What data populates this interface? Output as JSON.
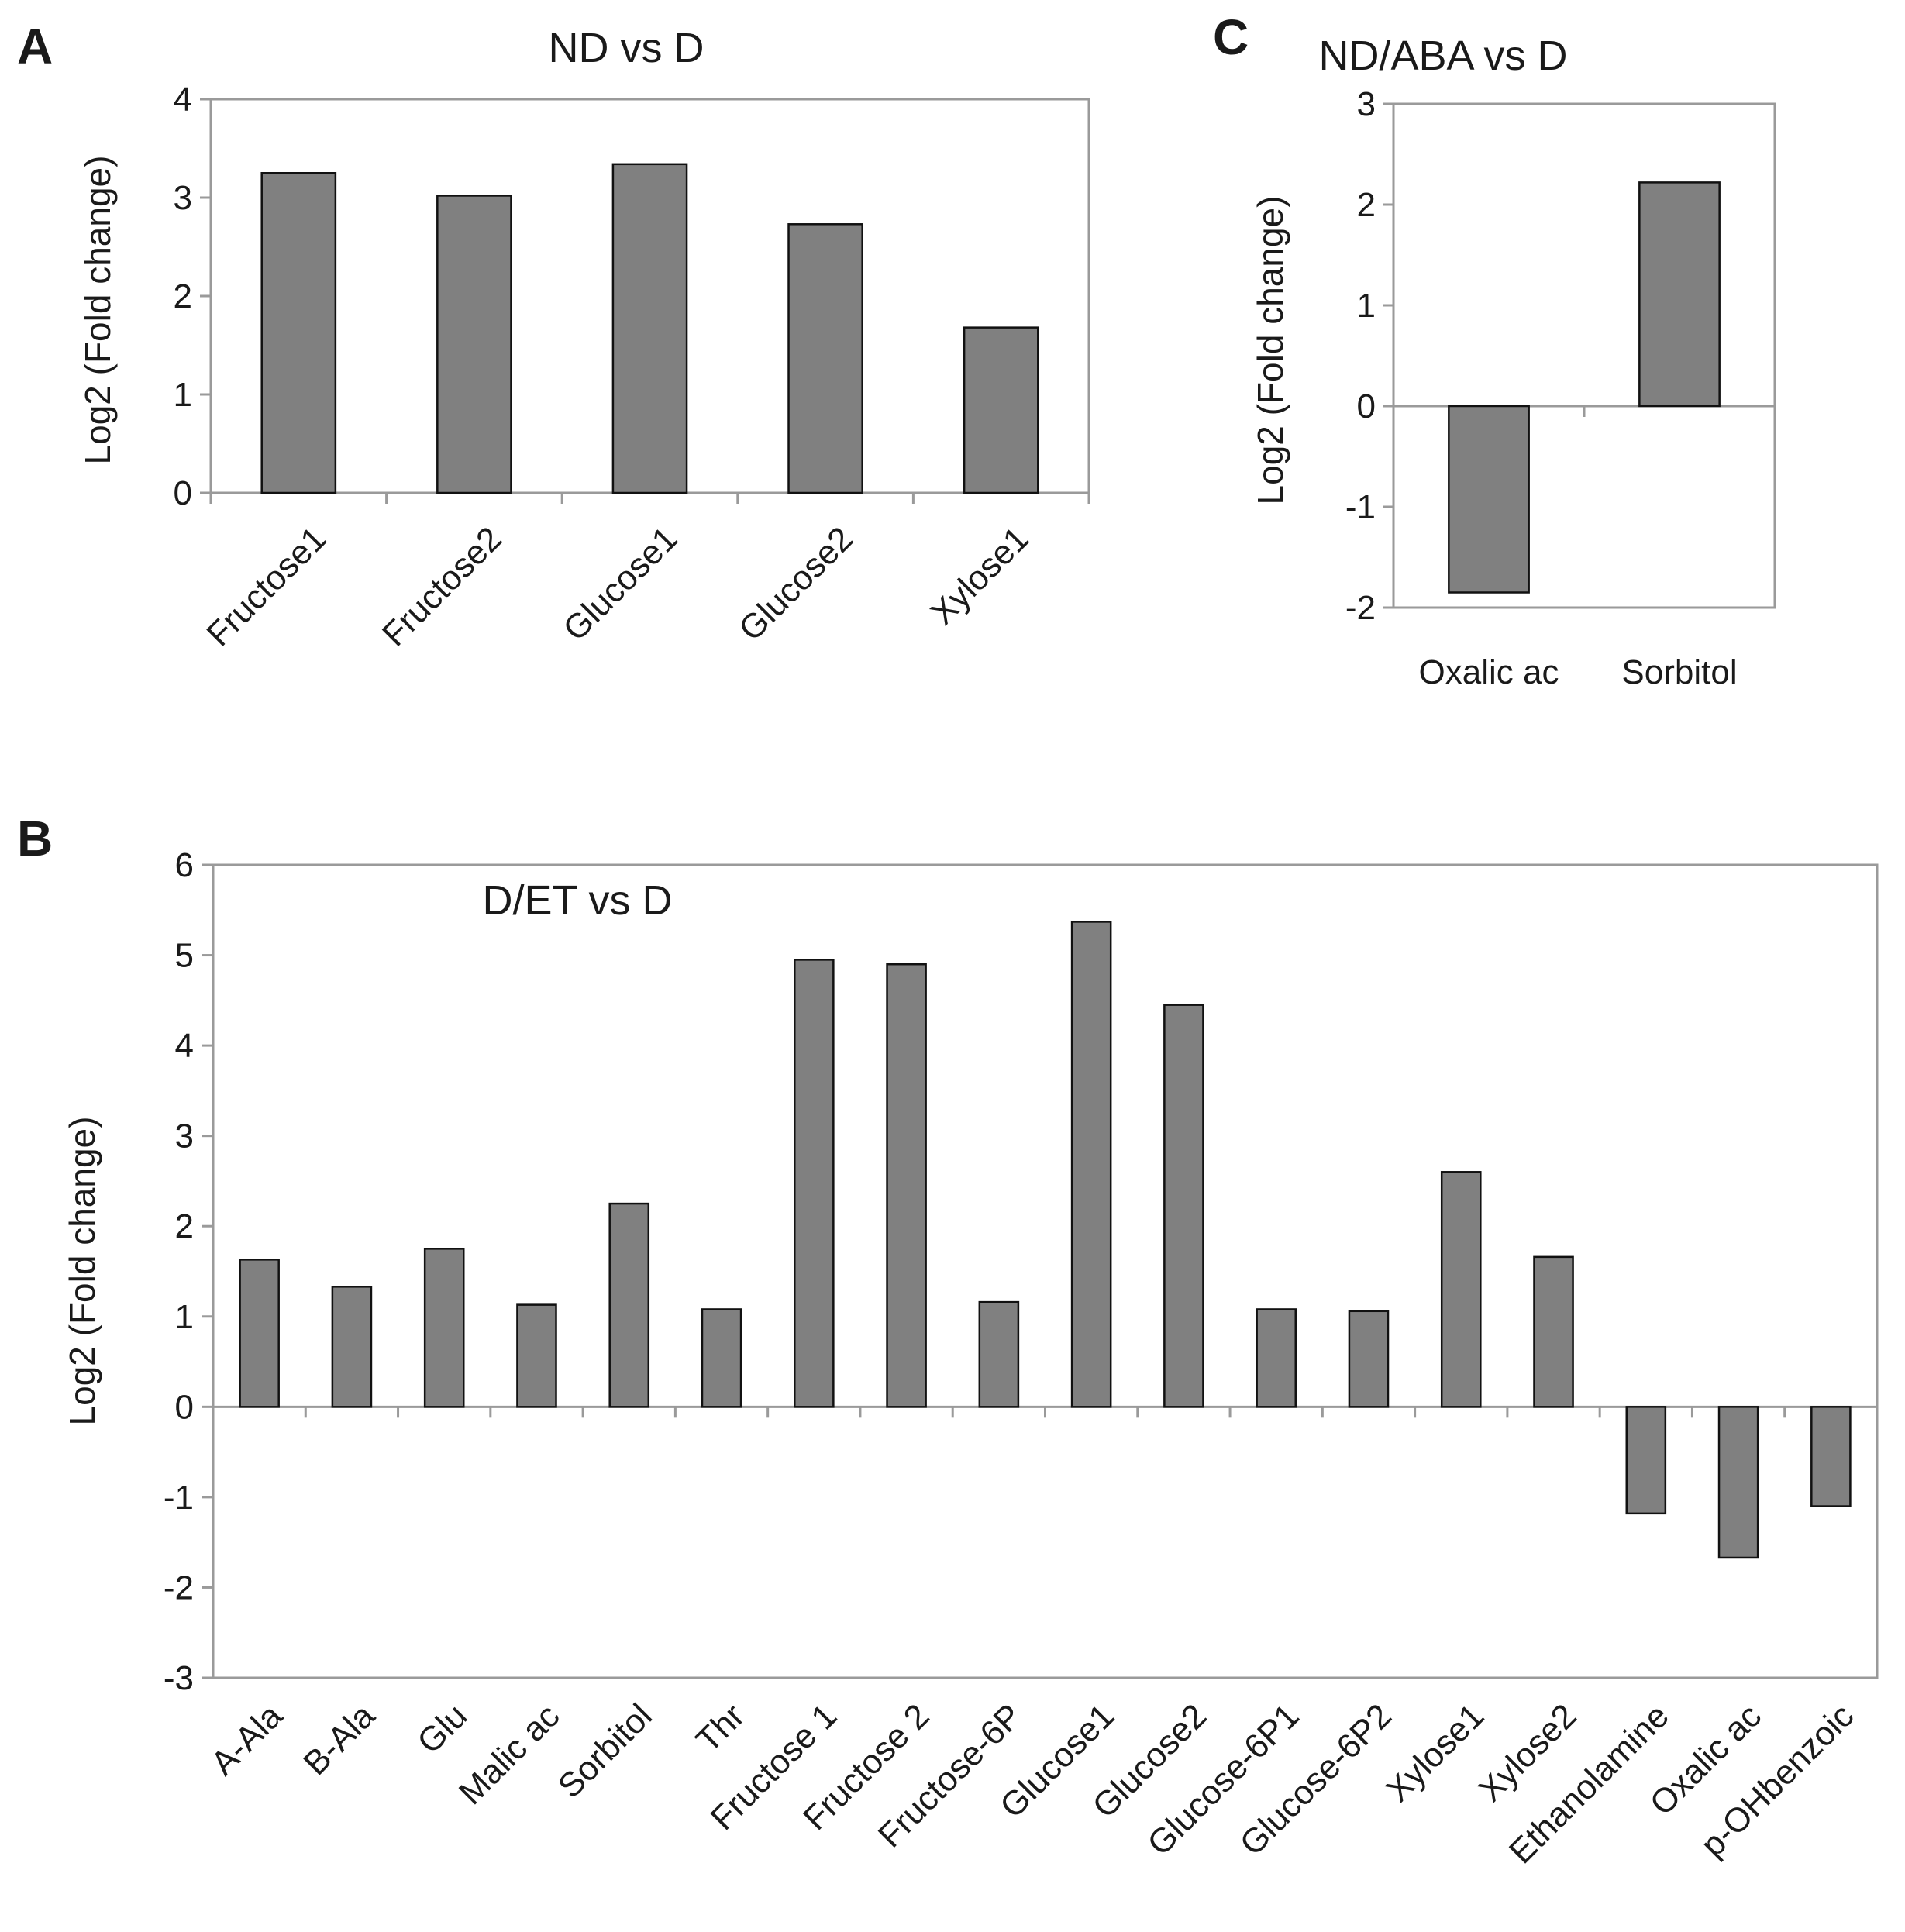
{
  "chart_data": [
    {
      "panel": "A",
      "type": "bar",
      "title": "ND vs D",
      "ylabel": "Log2 (Fold change)",
      "xlabel": "",
      "ylim": [
        0,
        4
      ],
      "yticks": [
        0,
        1,
        2,
        3,
        4
      ],
      "grid": false,
      "categories": [
        "Fructose1",
        "Fructose2",
        "Glucose1",
        "Glucose2",
        "Xylose1"
      ],
      "values": [
        3.25,
        3.02,
        3.34,
        2.73,
        1.68
      ],
      "label_rotation": -45
    },
    {
      "panel": "C",
      "type": "bar",
      "title": "ND/ABA vs D",
      "ylabel": "Log2 (Fold change)",
      "xlabel": "",
      "ylim": [
        -2,
        3
      ],
      "yticks": [
        -2,
        -1,
        0,
        1,
        2,
        3
      ],
      "grid": false,
      "categories": [
        "Oxalic ac",
        "Sorbitol"
      ],
      "values": [
        -1.85,
        2.22
      ],
      "label_rotation": 0
    },
    {
      "panel": "B",
      "type": "bar",
      "title": "D/ET vs D",
      "ylabel": "Log2 (Fold change)",
      "xlabel": "",
      "ylim": [
        -3,
        6
      ],
      "yticks": [
        -3,
        -2,
        -1,
        0,
        1,
        2,
        3,
        4,
        5,
        6
      ],
      "grid": false,
      "categories": [
        "A-Ala",
        "B-Ala",
        "Glu",
        "Malic ac",
        "Sorbitol",
        "Thr",
        "Fructose 1",
        "Fructose 2",
        "Fructose-6P",
        "Glucose1",
        "Glucose2",
        "Glucose-6P1",
        "Glucose-6P2",
        "Xylose1",
        "Xylose2",
        "Ethanolamine",
        "Oxalic ac",
        "p-OHbenzoic"
      ],
      "values": [
        1.63,
        1.33,
        1.75,
        1.13,
        2.25,
        1.08,
        4.95,
        4.9,
        1.16,
        5.37,
        4.45,
        1.08,
        1.06,
        2.6,
        1.66,
        -1.18,
        -1.67,
        -1.1
      ],
      "label_rotation": -45
    }
  ]
}
